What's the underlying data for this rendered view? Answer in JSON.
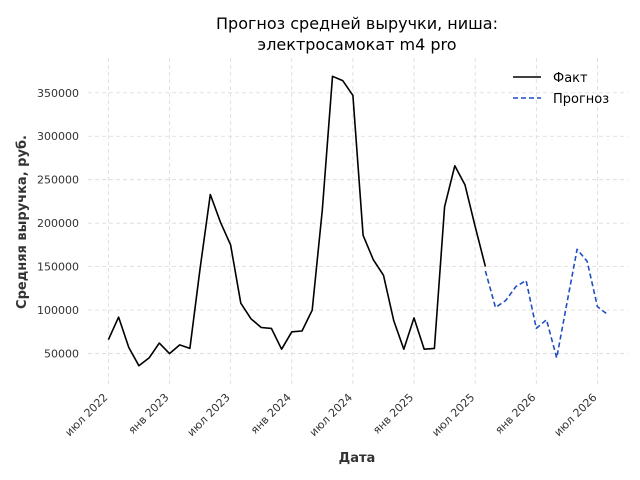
{
  "chart_data": {
    "type": "line",
    "title_lines": [
      "Прогноз средней выручки, ниша:",
      "электросамокат m4 pro"
    ],
    "xlabel": "Дата",
    "ylabel": "Средняя выручка, руб.",
    "x_tick_labels": [
      "июл 2022",
      "янв 2023",
      "июл 2023",
      "янв 2024",
      "июл 2024",
      "янв 2025",
      "июл 2025",
      "янв 2026",
      "июл 2026"
    ],
    "x_tick_months": [
      6,
      12,
      18,
      24,
      30,
      36,
      42,
      48,
      54
    ],
    "y_ticks": [
      50000,
      100000,
      150000,
      200000,
      250000,
      300000,
      350000
    ],
    "ylim": [
      15000,
      390000
    ],
    "xlim_months": [
      4,
      57
    ],
    "grid": true,
    "legend_position": "top-right",
    "series": [
      {
        "name": "Факт",
        "color": "#000000",
        "dash": "solid",
        "x_months": [
          6,
          7,
          8,
          9,
          10,
          11,
          12,
          13,
          14,
          15,
          16,
          17,
          18,
          19,
          20,
          21,
          22,
          23,
          24,
          25,
          26,
          27,
          28,
          29,
          30,
          31,
          32,
          33,
          34,
          35,
          36,
          37,
          38,
          39,
          40,
          41,
          42,
          43
        ],
        "values": [
          66000,
          92000,
          57000,
          36000,
          45000,
          62000,
          50000,
          60000,
          56000,
          148000,
          233000,
          201000,
          175000,
          108000,
          90000,
          80000,
          79000,
          55000,
          75000,
          76000,
          100000,
          215000,
          369000,
          364000,
          347000,
          186000,
          158000,
          140000,
          88000,
          55000,
          91000,
          55000,
          56000,
          219000,
          266000,
          244000,
          196000,
          150000
        ]
      },
      {
        "name": "Прогноз",
        "color": "#1f4fbf",
        "dash": "dashed",
        "x_months": [
          43,
          44,
          45,
          46,
          47,
          48,
          49,
          50,
          51,
          52,
          53,
          54,
          55
        ],
        "values": [
          145000,
          103000,
          111000,
          127000,
          134000,
          79000,
          89000,
          45000,
          108000,
          170000,
          156000,
          104000,
          95000
        ]
      }
    ]
  }
}
